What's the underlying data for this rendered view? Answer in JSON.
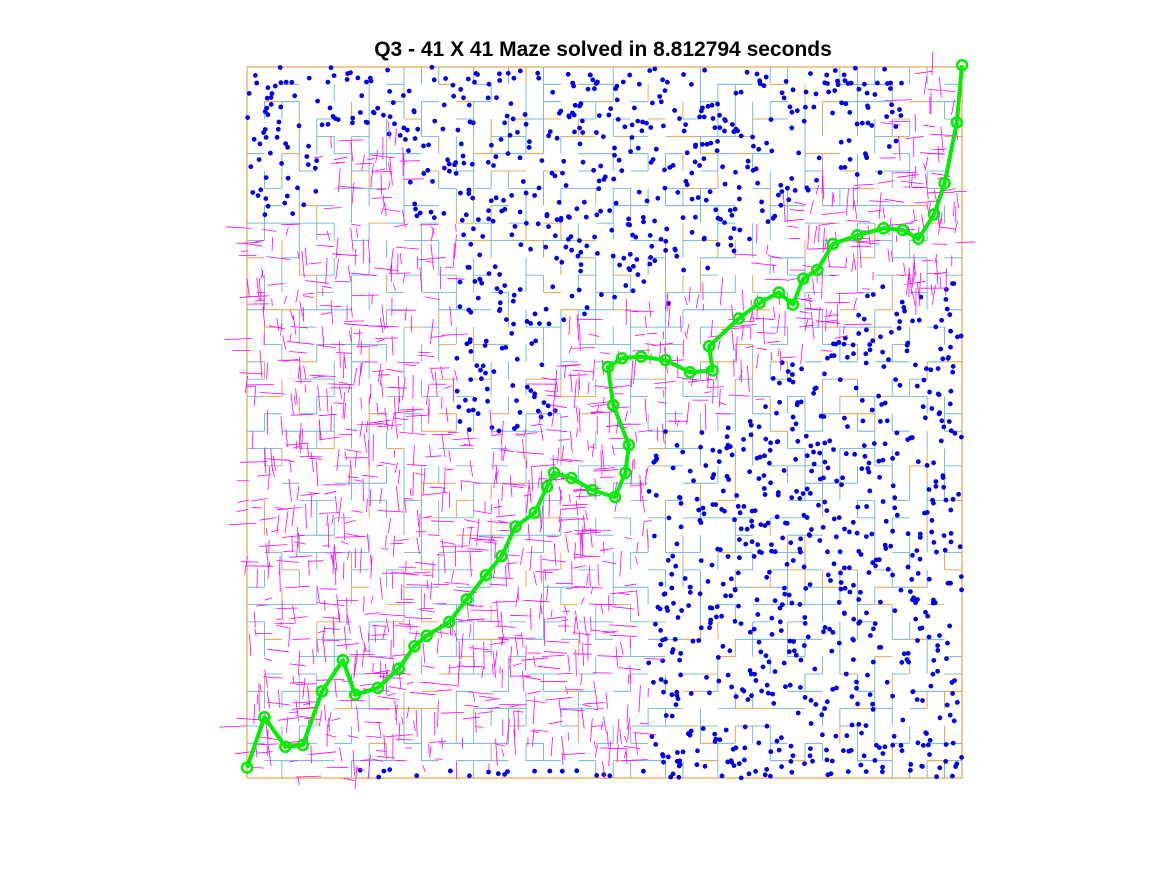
{
  "chart_data": {
    "type": "scatter",
    "title": "Q3 - 41 X 41 Maze solved in 8.812794 seconds",
    "xlabel": "",
    "ylabel": "",
    "grid": "41 X 41",
    "xlim": [
      0,
      41
    ],
    "ylim": [
      0,
      41
    ],
    "axes_visible": false,
    "colors": {
      "wall_primary": "#5aa9d6",
      "wall_secondary": "#e8912a",
      "unexplored_points": "#0000ee",
      "explored_paths": "#ff00ff",
      "solution_path": "#00ee00"
    },
    "series": [
      {
        "role": "maze-walls",
        "style": "thin lines"
      },
      {
        "role": "unexplored-samples",
        "style": "dots"
      },
      {
        "role": "explored-edges",
        "style": "thin lines"
      },
      {
        "role": "solution-path",
        "style": "thick line with circle markers",
        "x": [
          0.0,
          1.0,
          2.2,
          3.2,
          4.3,
          5.5,
          6.2,
          7.5,
          8.7,
          9.6,
          10.3,
          11.6,
          12.6,
          13.7,
          14.6,
          15.4,
          16.5,
          17.2,
          17.6,
          18.6,
          19.8,
          21.1,
          21.7,
          21.9,
          21.0,
          20.7,
          21.5,
          22.6,
          24.0,
          25.4,
          26.7,
          26.5,
          28.2,
          29.4,
          30.5,
          31.3,
          31.9,
          32.7,
          33.6,
          35.0,
          36.5,
          37.6,
          38.5,
          39.4,
          40.0,
          40.7,
          41.0
        ],
        "y": [
          0.6,
          3.5,
          1.8,
          1.9,
          5.0,
          6.8,
          4.8,
          5.2,
          6.3,
          7.6,
          8.2,
          9.0,
          10.3,
          11.7,
          12.8,
          14.5,
          15.3,
          16.8,
          17.6,
          17.3,
          16.6,
          16.2,
          17.6,
          19.2,
          21.5,
          23.7,
          24.2,
          24.3,
          24.1,
          23.4,
          23.5,
          24.9,
          26.5,
          27.4,
          28.0,
          27.3,
          28.8,
          29.3,
          30.8,
          31.3,
          31.7,
          31.6,
          31.1,
          32.5,
          34.3,
          37.8,
          41.1
        ]
      }
    ]
  }
}
